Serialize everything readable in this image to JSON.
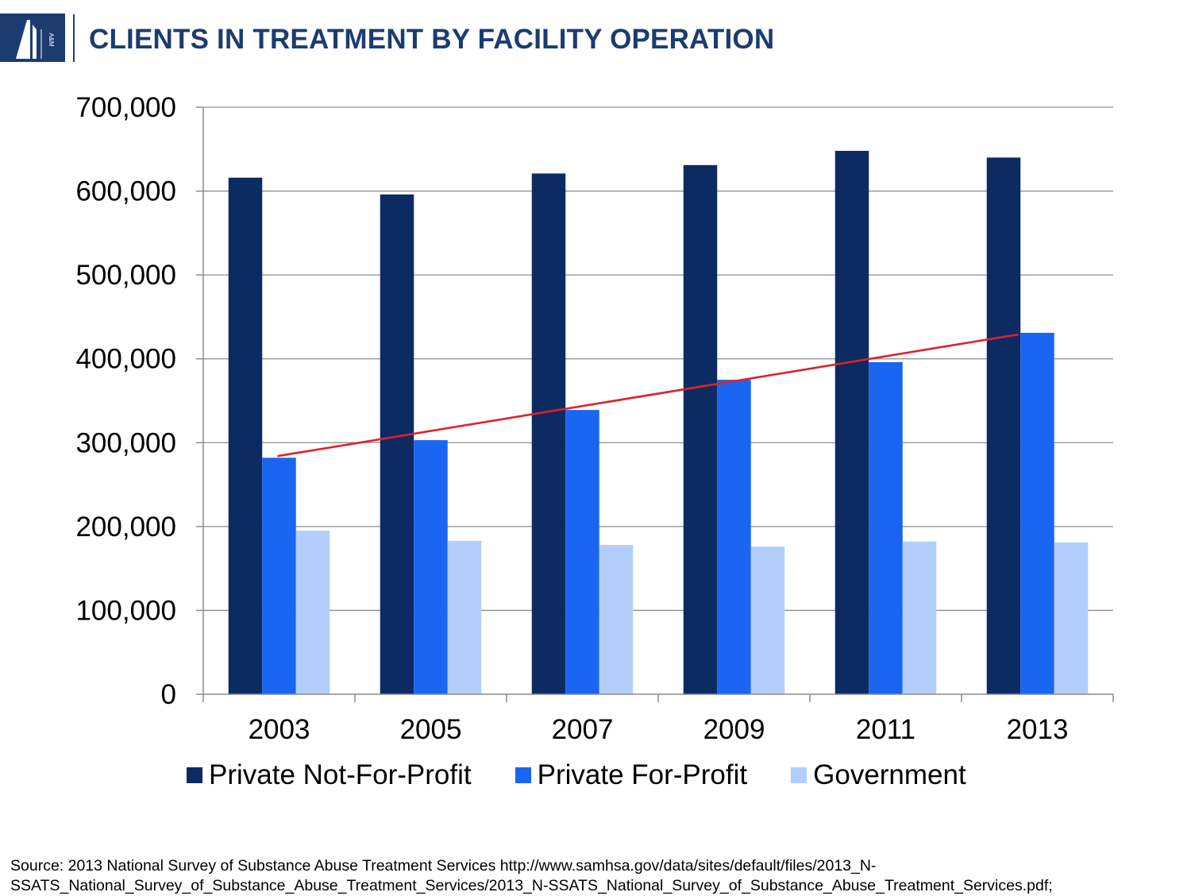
{
  "header": {
    "title": "CLIENTS IN TREATMENT BY FACILITY OPERATION",
    "logo_text": "A&M",
    "brand_color": "#1c3c70"
  },
  "chart_data": {
    "type": "bar",
    "title": "CLIENTS IN TREATMENT BY FACILITY OPERATION",
    "xlabel": "",
    "ylabel": "",
    "ylim": [
      0,
      700000
    ],
    "yticks": [
      0,
      100000,
      200000,
      300000,
      400000,
      500000,
      600000,
      700000
    ],
    "ytick_labels": [
      "0",
      "100,000",
      "200,000",
      "300,000",
      "400,000",
      "500,000",
      "600,000",
      "700,000"
    ],
    "grid": true,
    "legend_position": "bottom",
    "categories": [
      "2003",
      "2005",
      "2007",
      "2009",
      "2011",
      "2013"
    ],
    "series": [
      {
        "name": "Private Not-For-Profit",
        "color": "#0d2b63",
        "values": [
          616000,
          596000,
          621000,
          631000,
          648000,
          640000
        ]
      },
      {
        "name": "Private For-Profit",
        "color": "#1a66f2",
        "values": [
          282000,
          303000,
          339000,
          375000,
          396000,
          431000
        ]
      },
      {
        "name": "Government",
        "color": "#b3cefa",
        "values": [
          195000,
          183000,
          178000,
          176000,
          182000,
          181000
        ]
      }
    ],
    "trendline": {
      "series": "Private For-Profit",
      "color": "#e0202a",
      "start_value": 284000,
      "end_value": 429000
    }
  },
  "footer": {
    "source_line1": "Source: 2013 National Survey of Substance Abuse Treatment Services http://www.samhsa.gov/data/sites/default/files/2013_N-",
    "source_line2": "SSATS_National_Survey_of_Substance_Abuse_Treatment_Services/2013_N-SSATS_National_Survey_of_Substance_Abuse_Treatment_Services.pdf;"
  }
}
